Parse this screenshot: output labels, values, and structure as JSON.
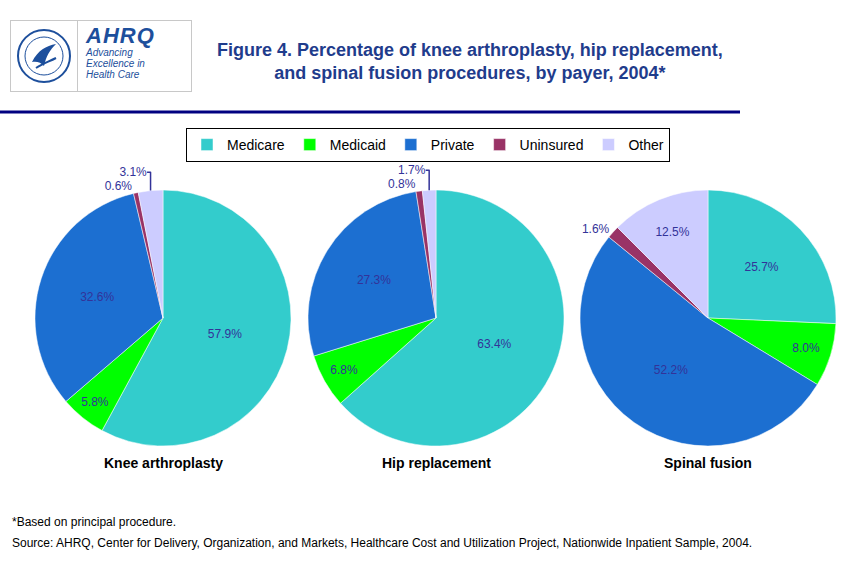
{
  "logo": {
    "name": "AHRQ",
    "tagline": [
      "Advancing",
      "Excellence in",
      "Health Care"
    ]
  },
  "title": [
    "Figure 4. Percentage of knee arthroplasty, hip replacement,",
    "and spinal fusion procedures, by payer, 2004*"
  ],
  "footnotes": [
    "*Based on principal procedure.",
    "Source: AHRQ, Center for Delivery, Organization, and Markets, Healthcare Cost and Utilization Project, Nationwide Inpatient Sample, 2004."
  ],
  "chart_data": [
    {
      "type": "pie",
      "title": "Knee arthroplasty",
      "categories": [
        "Medicare",
        "Medicaid",
        "Private",
        "Uninsured",
        "Other"
      ],
      "values": [
        57.9,
        5.8,
        32.6,
        0.6,
        3.1
      ],
      "value_labels": [
        "57.9%",
        "5.8%",
        "32.6%",
        "0.6%",
        "3.1%"
      ],
      "colors": [
        "#33cccc",
        "#00ff00",
        "#1c6fd1",
        "#993366",
        "#ccccff"
      ],
      "data_labels": true,
      "legend": "top"
    },
    {
      "type": "pie",
      "title": "Hip replacement",
      "categories": [
        "Medicare",
        "Medicaid",
        "Private",
        "Uninsured",
        "Other"
      ],
      "values": [
        63.4,
        6.8,
        27.3,
        0.8,
        1.7
      ],
      "value_labels": [
        "63.4%",
        "6.8%",
        "27.3%",
        "0.8%",
        "1.7%"
      ],
      "colors": [
        "#33cccc",
        "#00ff00",
        "#1c6fd1",
        "#993366",
        "#ccccff"
      ],
      "data_labels": true,
      "legend": "top"
    },
    {
      "type": "pie",
      "title": "Spinal fusion",
      "categories": [
        "Medicare",
        "Medicaid",
        "Private",
        "Uninsured",
        "Other"
      ],
      "values": [
        25.7,
        8.0,
        52.2,
        1.6,
        12.5
      ],
      "value_labels": [
        "25.7%",
        "8.0%",
        "52.2%",
        "1.6%",
        "12.5%"
      ],
      "colors": [
        "#33cccc",
        "#00ff00",
        "#1c6fd1",
        "#993366",
        "#ccccff"
      ],
      "data_labels": true,
      "legend": "top"
    }
  ]
}
